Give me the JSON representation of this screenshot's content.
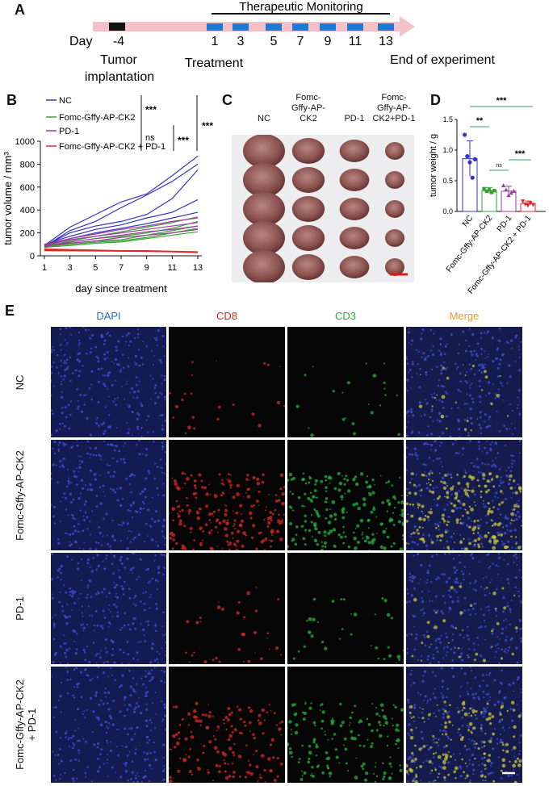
{
  "panels": {
    "A": "A",
    "B": "B",
    "C": "C",
    "D": "D",
    "E": "E"
  },
  "timeline": {
    "day_label": "Day",
    "days": [
      "-4",
      "1",
      "3",
      "5",
      "7",
      "9",
      "11",
      "13"
    ],
    "monitoring": "Therapeutic Monitoring",
    "tumor_impl_l1": "Tumor",
    "tumor_impl_l2": "implantation",
    "treatment": "Treatment",
    "end": "End of experiment"
  },
  "colors": {
    "nc": "#3535c0",
    "ck2": "#3aa035",
    "pd1": "#9a3d9a",
    "combo": "#e02a2a",
    "arrow": "#f4c1c6",
    "mark": "#1b7ad6",
    "teal": "#34a060"
  },
  "chart_data": [
    {
      "type": "line",
      "x": [
        1,
        3,
        5,
        7,
        9,
        11,
        13
      ],
      "xlabel": "day since treatment",
      "ylabel": "tumor volume / mm³",
      "ylim": [
        0,
        1000
      ],
      "yticks": [
        0,
        200,
        400,
        600,
        800,
        1000
      ],
      "xticks": [
        1,
        3,
        5,
        7,
        9,
        11,
        13
      ],
      "legend": [
        "NC",
        "Fomc-Gffy-AP-CK2",
        "PD-1",
        "Fomc-Gffy-AP-CK2 + PD-1"
      ],
      "sig": {
        "s1": "***",
        "s2": "ns",
        "s3": "***",
        "s4": "***"
      },
      "series": [
        {
          "group": "NC",
          "values": [
            90,
            250,
            360,
            470,
            540,
            700,
            870
          ]
        },
        {
          "group": "NC",
          "values": [
            80,
            220,
            300,
            420,
            530,
            650,
            800
          ]
        },
        {
          "group": "NC",
          "values": [
            85,
            200,
            260,
            300,
            360,
            500,
            750
          ]
        },
        {
          "group": "NC",
          "values": [
            100,
            170,
            230,
            270,
            330,
            380,
            490
          ]
        },
        {
          "group": "NC",
          "values": [
            95,
            150,
            200,
            240,
            280,
            330,
            380
          ]
        },
        {
          "group": "CK2",
          "values": [
            80,
            130,
            170,
            210,
            250,
            290,
            340
          ]
        },
        {
          "group": "CK2",
          "values": [
            90,
            120,
            150,
            170,
            200,
            240,
            300
          ]
        },
        {
          "group": "CK2",
          "values": [
            70,
            110,
            130,
            140,
            180,
            220,
            260
          ]
        },
        {
          "group": "CK2",
          "values": [
            85,
            100,
            120,
            130,
            160,
            200,
            240
          ]
        },
        {
          "group": "CK2",
          "values": [
            75,
            90,
            110,
            120,
            150,
            180,
            210
          ]
        },
        {
          "group": "PD1",
          "values": [
            100,
            150,
            190,
            230,
            260,
            300,
            330
          ]
        },
        {
          "group": "PD1",
          "values": [
            90,
            140,
            170,
            200,
            230,
            260,
            290
          ]
        },
        {
          "group": "PD1",
          "values": [
            80,
            120,
            150,
            180,
            210,
            230,
            260
          ]
        },
        {
          "group": "PD1",
          "values": [
            85,
            110,
            130,
            160,
            180,
            200,
            230
          ]
        },
        {
          "group": "COMBO",
          "values": [
            60,
            55,
            50,
            45,
            45,
            40,
            35
          ]
        },
        {
          "group": "COMBO",
          "values": [
            50,
            48,
            45,
            42,
            40,
            38,
            32
          ]
        },
        {
          "group": "COMBO",
          "values": [
            55,
            52,
            48,
            44,
            42,
            38,
            30
          ]
        },
        {
          "group": "COMBO",
          "values": [
            45,
            44,
            42,
            40,
            38,
            35,
            28
          ]
        },
        {
          "group": "COMBO",
          "values": [
            48,
            46,
            44,
            42,
            40,
            36,
            30
          ]
        }
      ]
    },
    {
      "type": "bar",
      "ylabel": "tumor weight / g",
      "ylim": [
        0,
        1.5
      ],
      "yticks": [
        0.0,
        0.5,
        1.0,
        1.5
      ],
      "categories": [
        "NC",
        "Fomc-Gffy-AP-CK2",
        "PD-1",
        "Fomc-Gffy-AP-CK2 + PD-1"
      ],
      "values": [
        0.86,
        0.34,
        0.33,
        0.13
      ],
      "errors": [
        0.29,
        0.05,
        0.08,
        0.04
      ],
      "points": [
        [
          1.25,
          0.9,
          0.8,
          0.55,
          0.85
        ],
        [
          0.37,
          0.33,
          0.35,
          0.31,
          0.34
        ],
        [
          0.42,
          0.35,
          0.26,
          0.3,
          0.33
        ],
        [
          0.17,
          0.12,
          0.1,
          0.14,
          0.11
        ]
      ],
      "sig": {
        "nc_ck2": "**",
        "ck2_pd1": "ns",
        "pd1_combo": "***",
        "nc_combo": "***"
      }
    }
  ],
  "photo": {
    "columns": [
      "NC",
      "Fomc-\nGffy-AP-\nCK2",
      "PD-1",
      "Fomc-\nGffy-AP-\nCK2+PD-1"
    ]
  },
  "micro": {
    "columns": [
      "DAPI",
      "CD8",
      "CD3",
      "Merge"
    ],
    "rows": [
      "NC",
      "Fomc-Gffy-AP-CK2",
      "PD-1",
      "Fomc-Gffy-AP-CK2\n+ PD-1"
    ]
  }
}
